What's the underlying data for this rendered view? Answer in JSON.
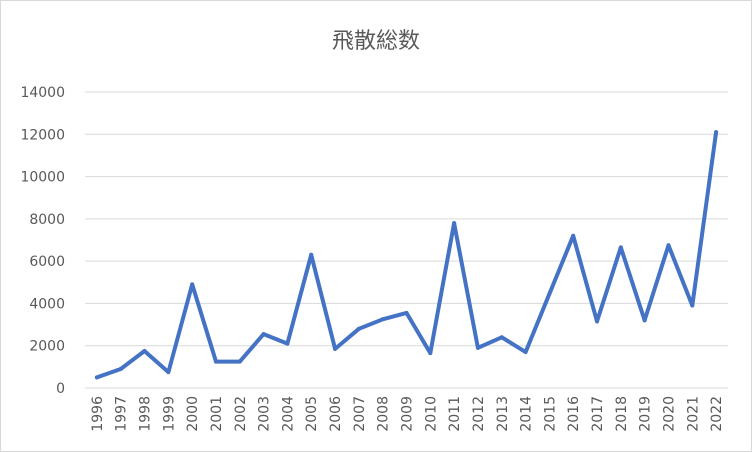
{
  "chart_data": {
    "type": "line",
    "title": "飛散総数",
    "xlabel": "",
    "ylabel": "",
    "x": [
      "1996",
      "1997",
      "1998",
      "1999",
      "2000",
      "2001",
      "2002",
      "2003",
      "2004",
      "2005",
      "2006",
      "2007",
      "2008",
      "2009",
      "2010",
      "2011",
      "2012",
      "2013",
      "2014",
      "2015",
      "2016",
      "2017",
      "2018",
      "2019",
      "2020",
      "2021",
      "2022"
    ],
    "series": [
      {
        "values": [
          500,
          900,
          1750,
          750,
          4900,
          1250,
          1250,
          2550,
          2100,
          6300,
          1850,
          2800,
          3250,
          3550,
          1650,
          7800,
          1900,
          2400,
          1700,
          4450,
          7200,
          3150,
          6650,
          3200,
          6750,
          3900,
          12100
        ],
        "color": "#4472c4"
      }
    ],
    "y_ticks": [
      "0",
      "2000",
      "4000",
      "6000",
      "8000",
      "10000",
      "12000",
      "14000"
    ],
    "ylim": [
      0,
      14000
    ],
    "grid": true,
    "legend": "none"
  }
}
